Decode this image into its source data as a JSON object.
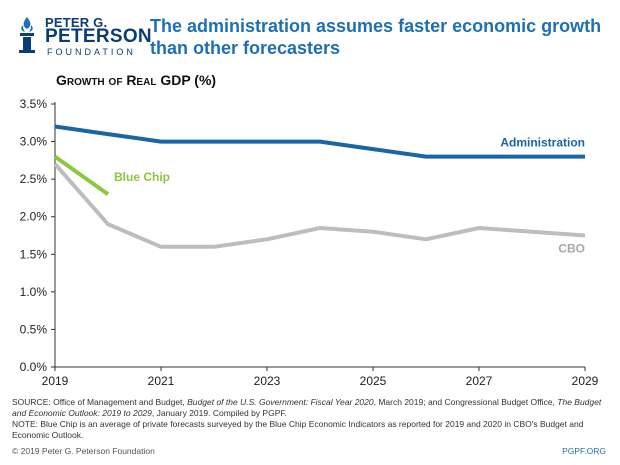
{
  "header": {
    "logo": {
      "line1": "PETER G.",
      "line2": "PETERSON",
      "line3": "FOUNDATION"
    },
    "headline": "The administration assumes faster economic growth than other forecasters"
  },
  "chart_data": {
    "type": "line",
    "title": "Growth of Real GDP (%)",
    "xlabel": "",
    "ylabel": "",
    "xlim": [
      2019,
      2029
    ],
    "ylim": [
      0,
      3.5
    ],
    "x_ticks": [
      2019,
      2021,
      2023,
      2025,
      2027,
      2029
    ],
    "x_tick_labels": [
      "2019",
      "2021",
      "2023",
      "2025",
      "2027",
      "2029"
    ],
    "y_ticks": [
      0,
      0.5,
      1.0,
      1.5,
      2.0,
      2.5,
      3.0,
      3.5
    ],
    "y_tick_labels": [
      "0.0%",
      "0.5%",
      "1.0%",
      "1.5%",
      "2.0%",
      "2.5%",
      "3.0%",
      "3.5%"
    ],
    "grid": false,
    "legend": "inline",
    "series": [
      {
        "name": "Administration",
        "color": "#1a65a6",
        "label_anchor": "end",
        "x": [
          2019,
          2020,
          2021,
          2022,
          2023,
          2024,
          2025,
          2026,
          2027,
          2028,
          2029
        ],
        "values": [
          3.2,
          3.1,
          3.0,
          3.0,
          3.0,
          3.0,
          2.9,
          2.8,
          2.8,
          2.8,
          2.8
        ]
      },
      {
        "name": "Blue Chip",
        "color": "#8dc63f",
        "label_anchor": "start",
        "x": [
          2019,
          2020
        ],
        "values": [
          2.8,
          2.3
        ]
      },
      {
        "name": "CBO",
        "color": "#bdbdbd",
        "label_anchor": "end",
        "x": [
          2019,
          2020,
          2021,
          2022,
          2023,
          2024,
          2025,
          2026,
          2027,
          2028,
          2029
        ],
        "values": [
          2.7,
          1.9,
          1.6,
          1.6,
          1.7,
          1.85,
          1.8,
          1.7,
          1.85,
          1.8,
          1.75
        ]
      }
    ]
  },
  "notes": {
    "source_prefix": "SOURCE: Office of Management and Budget, ",
    "source_title1": "Budget of the U.S. Government: Fiscal Year 2020",
    "source_mid": ", March 2019; and Congressional Budget Office, ",
    "source_title2": "The Budget and Economic Outlook: 2019 to 2029",
    "source_suffix": ", January 2019. Compiled by PGPF.",
    "note": "NOTE: Blue Chip is an average of private forecasts surveyed by the Blue Chip Economic Indicators as reported for 2019 and 2020 in CBO's Budget and Economic Outlook."
  },
  "footer": {
    "copyright": "© 2019 Peter G. Peterson Foundation",
    "site": "PGPF.ORG"
  }
}
